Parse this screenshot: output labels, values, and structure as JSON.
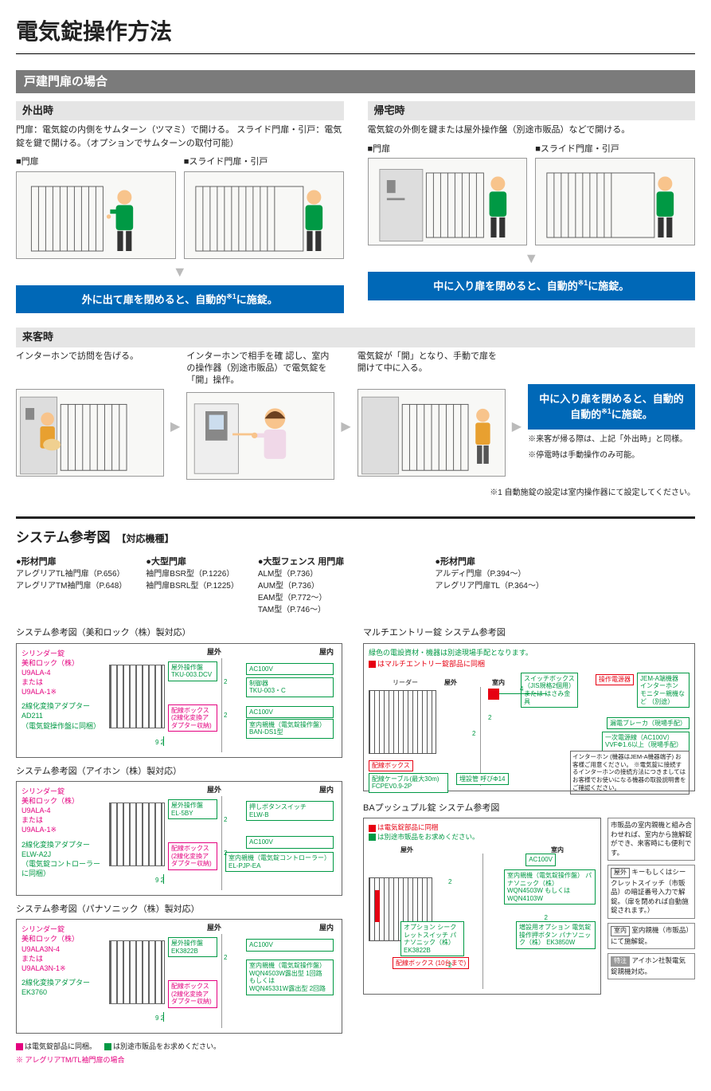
{
  "page": {
    "title": "電気錠操作方法"
  },
  "section1": {
    "bar": "戸建門扉の場合",
    "out": {
      "header": "外出時",
      "desc": "門扉：電気錠の内側をサムターン（ツマミ）で開ける。\nスライド門扉・引戸：電気錠を鍵で開ける。（オプションでサムターンの取付可能）",
      "gate1": "■門扉",
      "gate2": "■スライド門扉・引戸",
      "bar": "外に出て扉を閉めると、自動的",
      "sup": "※1",
      "bar2": "に施錠。"
    },
    "home": {
      "header": "帰宅時",
      "desc": "電気錠の外側を鍵または屋外操作盤（別途市販品）などで開ける。",
      "gate1": "■門扉",
      "gate2": "■スライド門扉・引戸",
      "bar": "中に入り扉を閉めると、自動的",
      "sup": "※1",
      "bar2": "に施錠。"
    },
    "visitor": {
      "header": "来客時",
      "steps": [
        {
          "text": "インターホンで訪問を告げる。"
        },
        {
          "text": "インターホンで相手を確 認し、室内の操作器（別途市販品）で電気錠を「開」操作。"
        },
        {
          "text": "電気錠が「開」となり、手動で扉を開けて中に入る。"
        }
      ],
      "finalbar": "中に入り扉を閉めると、自動的",
      "finalsup": "※1",
      "finalbar2": "に施錠。",
      "note1": "※来客が帰る際は、上記「外出時」と同様。",
      "note2": "※停電時は手動操作のみ可能。"
    },
    "footnote": "※1 自動施錠の設定は室内操作器にて設定してください。"
  },
  "system": {
    "title": "システム参考図",
    "bracket": "【対応機種】",
    "models": [
      {
        "head": "●形材門扉",
        "lines": [
          "アレグリアTL袖門扉（P.656）",
          "アレグリアTM袖門扉（P.648）"
        ]
      },
      {
        "head": "●大型門扉",
        "lines": [
          "袖門扉BSR型（P.1226）",
          "袖門扉BSRL型（P.1225）"
        ]
      },
      {
        "head": "●大型フェンス 用門扉",
        "lines": [
          "ALM型（P.736）",
          "AUM型（P.736）",
          "EAM型（P.772～）",
          "TAM型（P.746～）"
        ]
      },
      {
        "head": "●形材門扉",
        "lines": [
          "アルディ門扉（P.394～）",
          "アレグリア門扉TL（P.364～）"
        ]
      }
    ],
    "diagrams": [
      {
        "title": "システム参考図（美和ロック（株）製対応）",
        "cylinder": [
          "シリンダー錠",
          "美和ロック（株）",
          "U9ALA-4",
          "または",
          "U9ALA-1※"
        ],
        "adapter": [
          "2線化変換アダプター",
          "AD211",
          "（電気錠操作盤に同梱）"
        ],
        "outdoor": "屋外操作盤\nTKU-003.DCV",
        "box": "配線ボックス\n(2線化変換アダプター収納)",
        "zone_out": "屋外",
        "zone_in": "屋内",
        "items": [
          {
            "t": "AC100V",
            "y": 18
          },
          {
            "t": "制御器\nTKU-003・C",
            "y": 36
          },
          {
            "t": "AC100V",
            "y": 72
          },
          {
            "t": "室内親機（電気錠操作盤）\nBAN-DS1型",
            "y": 88
          }
        ],
        "wire": "9  2",
        "wire2": "2",
        "wire3": "2"
      },
      {
        "title": "システム参考図（アイホン（株）製対応）",
        "cylinder": [
          "シリンダー錠",
          "美和ロック（株）",
          "U9ALA-4",
          "または",
          "U9ALA-1※"
        ],
        "adapter": [
          "2線化変換アダプター",
          "ELW-A2J",
          "（電気錠コントローラーに同梱）"
        ],
        "outdoor": "屋外操作盤\nEL-5BY",
        "box": "配線ボックス\n(2線化変換アダプター収納)",
        "zone_out": "屋外",
        "zone_in": "屋内",
        "items": [
          {
            "t": "押しボタンスイッチ\nELW-B",
            "y": 18
          },
          {
            "t": "AC100V",
            "y": 62
          },
          {
            "t": "室内親機（電気錠コントローラー）\nEL-PJP-EA",
            "y": 82
          }
        ],
        "wire": "9  2",
        "wire2": "2",
        "wire3": "2"
      },
      {
        "title": "システム参考図（パナソニック（株）製対応）",
        "cylinder": [
          "シリンダー錠",
          "美和ロック（株）",
          "U9ALA3N-4",
          "または",
          "U9ALA3N-1※"
        ],
        "adapter": [
          "2線化変換アダプター",
          "EK3760"
        ],
        "outdoor": "屋外操作盤\nEK3822B",
        "box": "配線ボックス\n(2線化変換アダプター収納)",
        "zone_out": "屋外",
        "zone_in": "屋内",
        "items": [
          {
            "t": "AC100V",
            "y": 18
          },
          {
            "t": "室内親機（電気錠操作盤）\nWQN4503W露出型 1回路\nもしくは\nWQN45331W露出型 2回路",
            "y": 44
          }
        ],
        "wire": "9  2",
        "wire2": "2"
      }
    ],
    "legend": {
      "pink": "は電気錠部品に同梱。",
      "green": "は別途市販品をお求めください。",
      "star": "※ アレグリアTM/TL袖門扉の場合"
    },
    "multi": {
      "title": "マルチエントリー錠 システム参考図",
      "note1": "緑色の電設資材・機器は別途現場手配となります。",
      "note2": "はマルチエントリー錠部品に同梱",
      "reader": "リーダー",
      "out": "屋外",
      "in": "室内",
      "ctrl": "操作電源器",
      "sb": "スイッチボックス\n（JIS規格2個用）\nまたは はさみ金具",
      "jem": "JEM-A端機器\nインターホン\nモニター親機など\n（別途）",
      "breaker": "漏電ブレーカ（現場手配）",
      "ps": "一次電源線（AC100V）\nVVFΦ1.6以上（現場手配）",
      "interphone": "インターホン\n(機器はJEM-A機器端子)\nお客様ご用意ください。\n※電気錠に接続するインターホンの接続方法につきましてはお客様でお使いになる機器の取扱説明書をご確認ください。",
      "wirebox": "配線ボックス",
      "cable": "配線ケーブル(最大30m)\nFCPEV0.9-2P",
      "pipe": "埋設管 呼びΦ14",
      "nums": [
        "4",
        "2",
        "2"
      ]
    },
    "ba": {
      "title": "BAプッシュプル錠 システム参考図",
      "legend": "は電気錠部品に同梱",
      "legend2": "は別途市販品をお求めください。",
      "out": "屋外",
      "in": "室内",
      "ac": "AC100V",
      "indoor": "室内親機（電気錠操作盤）\nパナソニック（株）\nWQN4503W\nもしくはWQN4103W",
      "option": "オプション\nシークレットスイッチ\nパナソニック（株）\nEK3822B",
      "box": "配線ボックス\n(10台まで)",
      "add": "増設用オプション\n電気錠操作押ボタン\nパナソニック（株）\nEK3850W",
      "nums": [
        "2",
        "2",
        "2"
      ],
      "notes": [
        {
          "text": "市販品の室内親機と組み合わせれば、室内から施解錠ができ、来客時にも便利です。"
        },
        {
          "tag": "屋外",
          "text": "キーもしくはシークレットスイッチ（市販品）の暗証番号入力で解錠。（扉を閉めれば自動施錠されます。）"
        },
        {
          "tag": "室内",
          "text": "室内親機（市販品）にて施解錠。"
        },
        {
          "tag": "特注",
          "text": "アイホン社製電気錠親機対応。"
        }
      ]
    }
  }
}
